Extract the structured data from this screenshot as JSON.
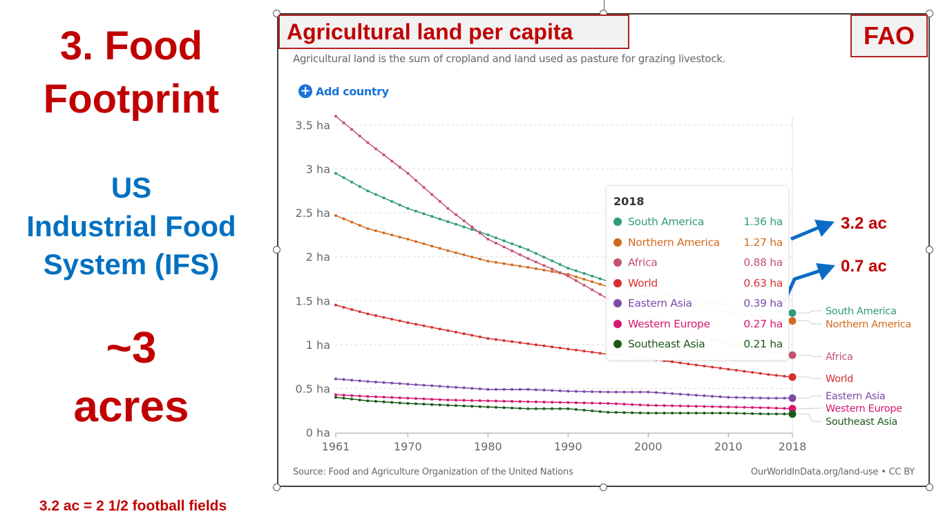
{
  "slide": {
    "heading_line1": "3. Food",
    "heading_line2": "Footprint",
    "sub_line1": "US",
    "sub_line2": "Industrial Food",
    "sub_line3": "System (IFS)",
    "big_line1": "~3",
    "big_line2": "acres",
    "footnote": "3.2 ac = 2 1/2 football fields",
    "title_box": "Agricultural land per capita",
    "source_box": "FAO",
    "annotation_1": "3.2 ac",
    "annotation_2": "0.7 ac",
    "colors": {
      "red": "#c00000",
      "blue": "#0070c0",
      "arrow": "#0a6cc4"
    }
  },
  "owid": {
    "subtitle": "Agricultural land is the sum of cropland and land used as pasture for grazing livestock.",
    "add_country": "Add country",
    "add_icon": "plus-circle-icon",
    "source": "Source: Food and Agriculture Organization of the United Nations",
    "license": "OurWorldInData.org/land-use • CC BY"
  },
  "chart_data": {
    "type": "line",
    "title": "Agricultural land per capita",
    "subtitle": "Agricultural land is the sum of cropland and land used as pasture for grazing livestock.",
    "xlabel": "",
    "ylabel": "",
    "xlim": [
      1961,
      2018
    ],
    "ylim": [
      0,
      3.5
    ],
    "x_ticks": [
      "1961",
      "1970",
      "1980",
      "1990",
      "2000",
      "2010",
      "2018"
    ],
    "y_ticks": [
      "0 ha",
      "0.5 ha",
      "1 ha",
      "1.5 ha",
      "2 ha",
      "2.5 ha",
      "3 ha",
      "3.5 ha"
    ],
    "grid": "horizontal-dotted",
    "legend": "right-inline-labels",
    "x": [
      1961,
      1965,
      1970,
      1975,
      1980,
      1985,
      1990,
      1995,
      2000,
      2005,
      2010,
      2015,
      2018
    ],
    "series": [
      {
        "name": "South America",
        "color": "#2e9b7a",
        "values": [
          2.95,
          2.75,
          2.55,
          2.4,
          2.25,
          2.08,
          1.87,
          1.72,
          1.62,
          1.52,
          1.45,
          1.39,
          1.36
        ]
      },
      {
        "name": "Northern America",
        "color": "#d2691e",
        "values": [
          2.47,
          2.32,
          2.2,
          2.07,
          1.95,
          1.88,
          1.8,
          1.66,
          1.55,
          1.45,
          1.37,
          1.3,
          1.27
        ]
      },
      {
        "name": "Africa",
        "color": "#c4516f",
        "values": [
          3.6,
          3.3,
          2.95,
          2.55,
          2.2,
          1.98,
          1.78,
          1.52,
          1.32,
          1.14,
          1.01,
          0.92,
          0.88
        ]
      },
      {
        "name": "World",
        "color": "#d62f2f",
        "values": [
          1.45,
          1.35,
          1.25,
          1.16,
          1.07,
          1.01,
          0.95,
          0.89,
          0.84,
          0.78,
          0.72,
          0.66,
          0.63
        ]
      },
      {
        "name": "Eastern Asia",
        "color": "#7d4aa8",
        "values": [
          0.61,
          0.58,
          0.55,
          0.52,
          0.49,
          0.49,
          0.47,
          0.46,
          0.46,
          0.43,
          0.4,
          0.39,
          0.39
        ]
      },
      {
        "name": "Western Europe",
        "color": "#d6176e",
        "values": [
          0.43,
          0.41,
          0.39,
          0.37,
          0.36,
          0.35,
          0.34,
          0.33,
          0.31,
          0.3,
          0.29,
          0.28,
          0.27
        ]
      },
      {
        "name": "Southeast Asia",
        "color": "#1a5a1a",
        "values": [
          0.4,
          0.36,
          0.33,
          0.31,
          0.29,
          0.27,
          0.27,
          0.23,
          0.22,
          0.22,
          0.22,
          0.21,
          0.21
        ]
      }
    ],
    "tooltip": {
      "year": "2018",
      "rows": [
        {
          "name": "South America",
          "value": "1.36 ha"
        },
        {
          "name": "Northern America",
          "value": "1.27 ha"
        },
        {
          "name": "Africa",
          "value": "0.88 ha"
        },
        {
          "name": "World",
          "value": "0.63 ha"
        },
        {
          "name": "Eastern Asia",
          "value": "0.39 ha"
        },
        {
          "name": "Western Europe",
          "value": "0.27 ha"
        },
        {
          "name": "Southeast Asia",
          "value": "0.21 ha"
        }
      ]
    }
  }
}
